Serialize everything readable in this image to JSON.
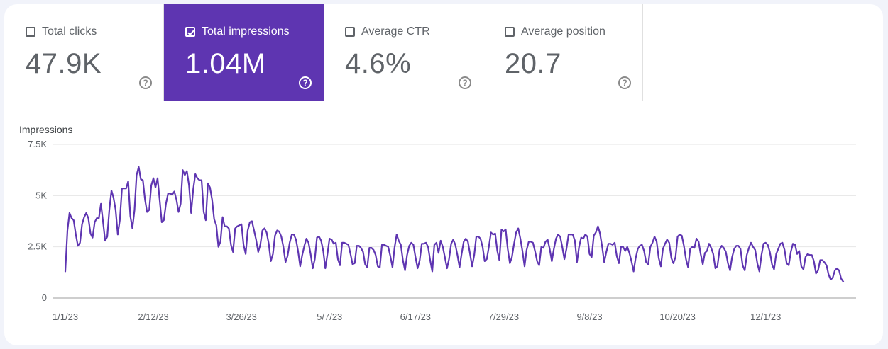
{
  "metrics": [
    {
      "label": "Total clicks",
      "value": "47.9K",
      "checked": false,
      "help_icon": "help-circle-icon"
    },
    {
      "label": "Total impressions",
      "value": "1.04M",
      "checked": true,
      "help_icon": "help-circle-icon"
    },
    {
      "label": "Average CTR",
      "value": "4.6%",
      "checked": false,
      "help_icon": "help-circle-icon"
    },
    {
      "label": "Average position",
      "value": "20.7",
      "checked": false,
      "help_icon": "help-circle-icon"
    }
  ],
  "colors": {
    "accent": "#5e35b1",
    "line": "#5e35b1",
    "grid": "#e6e6e6"
  },
  "chart_data": {
    "type": "line",
    "ylabel": "Impressions",
    "ylim": [
      0,
      7500
    ],
    "yticks": [
      {
        "value": 0,
        "label": "0"
      },
      {
        "value": 2500,
        "label": "2.5K"
      },
      {
        "value": 5000,
        "label": "5K"
      },
      {
        "value": 7500,
        "label": "7.5K"
      }
    ],
    "xticks": [
      "1/1/23",
      "2/12/23",
      "3/26/23",
      "5/7/23",
      "6/17/23",
      "7/29/23",
      "9/8/23",
      "10/20/23",
      "12/1/23"
    ],
    "xtick_day_index": [
      0,
      42,
      84,
      126,
      167,
      209,
      250,
      292,
      334
    ],
    "grid": true,
    "series": [
      {
        "name": "Impressions",
        "x_start": "1/1/23",
        "x_step": "1 day",
        "values": [
          1300,
          3300,
          4150,
          3900,
          3800,
          3100,
          2550,
          2700,
          3600,
          3950,
          4150,
          3900,
          3150,
          2950,
          3700,
          3900,
          3900,
          4600,
          3700,
          2800,
          3000,
          4300,
          5250,
          4900,
          4300,
          3100,
          3800,
          5350,
          5350,
          5350,
          5700,
          4000,
          3400,
          4300,
          6000,
          6400,
          5800,
          5750,
          4800,
          4200,
          4300,
          5500,
          5850,
          5400,
          5850,
          4800,
          3700,
          3800,
          4600,
          5100,
          5100,
          5050,
          5200,
          4800,
          4200,
          4600,
          6250,
          6000,
          6200,
          5500,
          4150,
          5300,
          6050,
          5850,
          5750,
          5750,
          4200,
          3800,
          5600,
          5400,
          4800,
          3850,
          3550,
          2500,
          2750,
          3950,
          3500,
          3500,
          3400,
          2600,
          2250,
          3400,
          3500,
          3550,
          3600,
          2600,
          2150,
          3300,
          3700,
          3750,
          3300,
          2850,
          2250,
          2600,
          3300,
          3400,
          3200,
          2650,
          1800,
          2150,
          3050,
          3300,
          3250,
          3000,
          2500,
          1750,
          2050,
          2700,
          3100,
          3100,
          2850,
          2300,
          1550,
          2100,
          2550,
          2900,
          2700,
          2150,
          1450,
          1900,
          2950,
          3000,
          2800,
          2300,
          1450,
          2150,
          2900,
          2850,
          2650,
          2700,
          1900,
          1600,
          2700,
          2700,
          2650,
          2600,
          2150,
          1650,
          1700,
          2550,
          2550,
          2450,
          2250,
          1650,
          1500,
          2450,
          2450,
          2350,
          2100,
          1550,
          1500,
          2600,
          2600,
          2550,
          2500,
          2050,
          1500,
          2450,
          3100,
          2800,
          2600,
          1850,
          1350,
          2100,
          2550,
          2700,
          2600,
          2000,
          1450,
          1850,
          2650,
          2650,
          2700,
          2500,
          1850,
          1300,
          2600,
          2700,
          2200,
          2800,
          2500,
          2000,
          1450,
          1900,
          2650,
          2850,
          2600,
          2100,
          1500,
          2150,
          2750,
          2900,
          2750,
          2150,
          1550,
          2100,
          3000,
          3000,
          2900,
          2500,
          1800,
          1900,
          2500,
          3200,
          3100,
          3150,
          2300,
          1850,
          3350,
          3250,
          3350,
          2400,
          1700,
          2000,
          2650,
          3200,
          3400,
          2900,
          2300,
          1550,
          2350,
          2750,
          2750,
          2700,
          2300,
          1800,
          1600,
          2500,
          2450,
          2750,
          2850,
          2400,
          1800,
          2400,
          2900,
          3100,
          3000,
          2500,
          1900,
          2400,
          3100,
          3100,
          3100,
          2800,
          1750,
          2500,
          2950,
          2900,
          3100,
          3000,
          2150,
          2000,
          3050,
          3200,
          3500,
          3150,
          2500,
          1750,
          2250,
          2650,
          2650,
          2600,
          2700,
          2050,
          1700,
          2500,
          2500,
          2300,
          2500,
          2200,
          1800,
          1300,
          1950,
          2400,
          2550,
          2600,
          2300,
          1750,
          1650,
          2500,
          2700,
          3000,
          2750,
          1950,
          1550,
          2400,
          2650,
          2850,
          2700,
          1950,
          1700,
          2000,
          3000,
          3100,
          3050,
          2550,
          1900,
          1500,
          2400,
          2500,
          2450,
          2900,
          2750,
          2150,
          1650,
          2200,
          2300,
          2650,
          2450,
          2150,
          1450,
          1550,
          2350,
          2550,
          2450,
          2250,
          1700,
          1350,
          2000,
          2400,
          2550,
          2550,
          2400,
          1600,
          1350,
          2100,
          2450,
          2700,
          2500,
          2350,
          1700,
          1300,
          2100,
          2650,
          2700,
          2600,
          2250,
          1650,
          1400,
          2150,
          2400,
          2650,
          2700,
          2350,
          1700,
          1600,
          2250,
          2650,
          2600,
          2150,
          2300,
          1550,
          1400,
          2000,
          2150,
          2100,
          2100,
          1800,
          1200,
          1350,
          1850,
          1850,
          1750,
          1600,
          1150,
          900,
          1000,
          1350,
          1450,
          1350,
          950,
          800
        ]
      }
    ]
  }
}
